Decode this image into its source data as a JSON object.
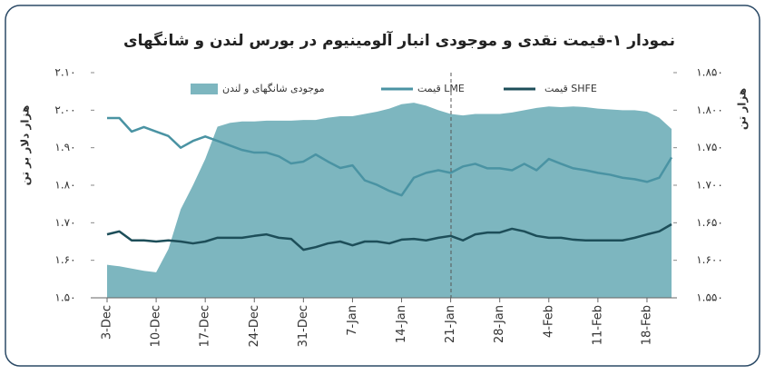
{
  "chart_data": {
    "type": "line",
    "title": "نمودار ۱-قیمت نقدی و موجودی انبار آلومینیوم در بورس لندن و شانگهای",
    "y_label": "هزار دلار بر تن",
    "y2_label": "هزار تن",
    "categories": [
      "3-Dec",
      null,
      null,
      null,
      "10-Dec",
      null,
      null,
      null,
      "17-Dec",
      null,
      null,
      null,
      "24-Dec",
      null,
      null,
      null,
      "31-Dec",
      null,
      null,
      null,
      "7-Jan",
      null,
      null,
      null,
      "14-Jan",
      null,
      null,
      null,
      "21-Jan",
      null,
      null,
      null,
      "28-Jan",
      null,
      null,
      null,
      "4-Feb",
      null,
      null,
      null,
      "11-Feb",
      null,
      null,
      null,
      "18-Feb",
      null,
      null
    ],
    "ylim": [
      1.5,
      2.1
    ],
    "yticks": [
      {
        "value": 1.5,
        "label": "۱.۵۰"
      },
      {
        "value": 1.6,
        "label": "۱.۶۰"
      },
      {
        "value": 1.7,
        "label": "۱.۷۰"
      },
      {
        "value": 1.8,
        "label": "۱.۸۰"
      },
      {
        "value": 1.9,
        "label": "۱.۹۰"
      },
      {
        "value": 2.0,
        "label": "۲.۰۰"
      },
      {
        "value": 2.1,
        "label": "۲.۱۰"
      }
    ],
    "y2lim": [
      1.55,
      1.85
    ],
    "y2ticks": [
      {
        "value": 1.55,
        "label": "۱.۵۵۰"
      },
      {
        "value": 1.6,
        "label": "۱.۶۰۰"
      },
      {
        "value": 1.65,
        "label": "۱.۶۵۰"
      },
      {
        "value": 1.7,
        "label": "۱.۷۰۰"
      },
      {
        "value": 1.75,
        "label": "۱.۷۵۰"
      },
      {
        "value": 1.8,
        "label": "۱.۸۰۰"
      },
      {
        "value": 1.85,
        "label": "۱.۸۵۰"
      }
    ],
    "series": [
      {
        "name": "موجودی شانگهای و لندن",
        "style": "area",
        "axis": "y2",
        "color": "#7db6bf",
        "values": [
          1.594,
          1.592,
          1.589,
          1.586,
          1.584,
          1.615,
          1.668,
          1.7,
          1.735,
          1.778,
          1.783,
          1.785,
          1.785,
          1.786,
          1.786,
          1.786,
          1.787,
          1.787,
          1.79,
          1.792,
          1.792,
          1.795,
          1.798,
          1.802,
          1.808,
          1.81,
          1.806,
          1.8,
          1.795,
          1.793,
          1.795,
          1.795,
          1.795,
          1.797,
          1.8,
          1.803,
          1.805,
          1.804,
          1.805,
          1.804,
          1.802,
          1.801,
          1.8,
          1.8,
          1.798,
          1.79,
          1.775
        ]
      },
      {
        "name": "قیمت LME",
        "color": "#4a93a3",
        "values": [
          1.979,
          1.979,
          1.943,
          1.955,
          1.943,
          1.931,
          1.9,
          1.918,
          1.93,
          1.918,
          1.906,
          1.894,
          1.887,
          1.887,
          1.877,
          1.858,
          1.863,
          1.882,
          1.863,
          1.846,
          1.853,
          1.813,
          1.801,
          1.785,
          1.773,
          1.82,
          1.833,
          1.84,
          1.833,
          1.85,
          1.857,
          1.845,
          1.845,
          1.84,
          1.857,
          1.84,
          1.87,
          1.857,
          1.845,
          1.84,
          1.833,
          1.828,
          1.82,
          1.816,
          1.809,
          1.82,
          1.874
        ]
      },
      {
        "name": "قیمت SHFE",
        "color": "#1d4e59",
        "values": [
          1.669,
          1.677,
          1.653,
          1.653,
          1.65,
          1.653,
          1.65,
          1.645,
          1.65,
          1.66,
          1.66,
          1.66,
          1.665,
          1.669,
          1.66,
          1.657,
          1.628,
          1.635,
          1.645,
          1.65,
          1.64,
          1.65,
          1.65,
          1.645,
          1.655,
          1.657,
          1.653,
          1.66,
          1.665,
          1.653,
          1.669,
          1.674,
          1.674,
          1.684,
          1.677,
          1.665,
          1.66,
          1.66,
          1.655,
          1.653,
          1.653,
          1.653,
          1.653,
          1.66,
          1.669,
          1.677,
          1.696
        ]
      }
    ]
  }
}
